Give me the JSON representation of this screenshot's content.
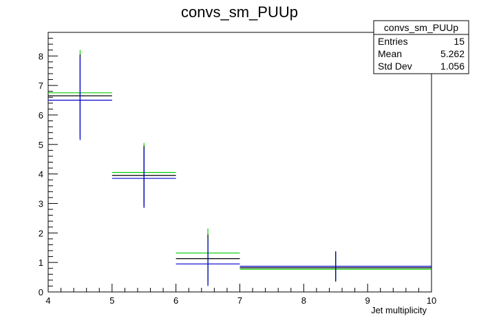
{
  "chart_data": {
    "type": "scatter",
    "title": "convs_sm_PUUp",
    "xlabel": "Jet multiplicity",
    "ylabel": "",
    "xlim": [
      4,
      10
    ],
    "ylim": [
      0,
      8.8
    ],
    "xticks": [
      "4",
      "5",
      "6",
      "7",
      "8",
      "9",
      "10"
    ],
    "yticks": [
      "0",
      "1",
      "2",
      "3",
      "4",
      "5",
      "6",
      "7",
      "8"
    ],
    "grid": false,
    "legend": "none",
    "series": [
      {
        "color": "#00cc00",
        "points": [
          {
            "xlo": 4,
            "xhi": 5,
            "x": 4.5,
            "y": 6.75,
            "ylo": 5.35,
            "yhi": 8.2
          },
          {
            "xlo": 5,
            "xhi": 6,
            "x": 5.5,
            "y": 4.05,
            "ylo": 3.0,
            "yhi": 5.05
          },
          {
            "xlo": 6,
            "xhi": 7,
            "x": 6.5,
            "y": 1.32,
            "ylo": 0.4,
            "yhi": 2.15
          },
          {
            "xlo": 7,
            "xhi": 10,
            "x": 8.5,
            "y": 0.77,
            "ylo": 0.38,
            "yhi": 1.32
          }
        ]
      },
      {
        "color": "#000000",
        "points": [
          {
            "xlo": 4,
            "xhi": 5,
            "x": 4.5,
            "y": 6.65,
            "ylo": 5.2,
            "yhi": 8.05
          },
          {
            "xlo": 5,
            "xhi": 6,
            "x": 5.5,
            "y": 3.95,
            "ylo": 2.9,
            "yhi": 4.95
          },
          {
            "xlo": 6,
            "xhi": 7,
            "x": 6.5,
            "y": 1.13,
            "ylo": 0.25,
            "yhi": 1.95
          },
          {
            "xlo": 7,
            "xhi": 10,
            "x": 8.5,
            "y": 0.82,
            "ylo": 0.35,
            "yhi": 1.38
          }
        ]
      },
      {
        "color": "#0000cc",
        "points": [
          {
            "xlo": 4,
            "xhi": 5,
            "x": 4.5,
            "y": 6.5,
            "ylo": 5.15,
            "yhi": 7.95
          },
          {
            "xlo": 5,
            "xhi": 6,
            "x": 5.5,
            "y": 3.85,
            "ylo": 2.85,
            "yhi": 4.85
          },
          {
            "xlo": 6,
            "xhi": 7,
            "x": 6.5,
            "y": 0.95,
            "ylo": 0.2,
            "yhi": 1.8
          },
          {
            "xlo": 7,
            "xhi": 10,
            "x": 8.5,
            "y": 0.87,
            "ylo": 0.4,
            "yhi": 1.35
          }
        ]
      }
    ]
  },
  "stats": {
    "name": "convs_sm_PUUp",
    "rows": [
      {
        "label": "Entries",
        "value": "15"
      },
      {
        "label": "Mean",
        "value": "5.262"
      },
      {
        "label": "Std Dev",
        "value": "1.056"
      }
    ]
  }
}
